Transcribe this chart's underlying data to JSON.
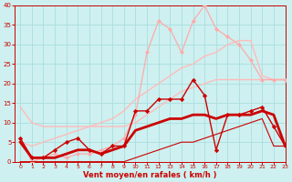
{
  "bg_color": "#cef0f0",
  "grid_color": "#aadddd",
  "xlabel": "Vent moyen/en rafales ( km/h )",
  "xlabel_color": "#cc0000",
  "tick_color": "#cc0000",
  "xlim": [
    -0.5,
    23
  ],
  "ylim": [
    0,
    40
  ],
  "xticks": [
    0,
    1,
    2,
    3,
    4,
    5,
    6,
    7,
    8,
    9,
    10,
    11,
    12,
    13,
    14,
    15,
    16,
    17,
    18,
    19,
    20,
    21,
    22,
    23
  ],
  "yticks": [
    0,
    5,
    10,
    15,
    20,
    25,
    30,
    35,
    40
  ],
  "lines": [
    {
      "x": [
        0,
        1,
        2,
        3,
        4,
        5,
        6,
        7,
        8,
        9,
        10,
        11,
        12,
        13,
        14,
        15,
        16,
        17,
        18,
        19,
        20,
        21,
        22,
        23
      ],
      "y": [
        6,
        0,
        1,
        2,
        1,
        2,
        2,
        3,
        4,
        6,
        12,
        28,
        36,
        34,
        28,
        36,
        40,
        34,
        32,
        30,
        26,
        21,
        21,
        21
      ],
      "color": "#ffaaaa",
      "lw": 0.9,
      "marker": "D",
      "ms": 2.0,
      "zorder": 3
    },
    {
      "x": [
        0,
        1,
        2,
        3,
        4,
        5,
        6,
        7,
        8,
        9,
        10,
        11,
        12,
        13,
        14,
        15,
        16,
        17,
        18,
        19,
        20,
        21,
        22,
        23
      ],
      "y": [
        5,
        4,
        5,
        6,
        7,
        8,
        9,
        10,
        11,
        13,
        16,
        18,
        20,
        22,
        24,
        25,
        27,
        28,
        30,
        31,
        31,
        22,
        21,
        21
      ],
      "color": "#ffbbbb",
      "lw": 1.0,
      "marker": null,
      "ms": 0,
      "zorder": 2
    },
    {
      "x": [
        0,
        1,
        2,
        3,
        4,
        5,
        6,
        7,
        8,
        9,
        10,
        11,
        12,
        13,
        14,
        15,
        16,
        17,
        18,
        19,
        20,
        21,
        22,
        23
      ],
      "y": [
        14,
        10,
        9,
        9,
        9,
        9,
        9,
        9,
        9,
        9,
        10,
        12,
        14,
        16,
        18,
        19,
        20,
        21,
        21,
        21,
        21,
        21,
        21,
        21
      ],
      "color": "#ffbbbb",
      "lw": 1.0,
      "marker": null,
      "ms": 0,
      "zorder": 2
    },
    {
      "x": [
        0,
        1,
        2,
        3,
        4,
        5,
        6,
        7,
        8,
        9,
        10,
        11,
        12,
        13,
        14,
        15,
        16,
        17,
        18,
        19,
        20,
        21,
        22,
        23
      ],
      "y": [
        6,
        1,
        1,
        3,
        5,
        6,
        3,
        2,
        4,
        4,
        13,
        13,
        16,
        16,
        16,
        21,
        17,
        3,
        12,
        12,
        13,
        14,
        9,
        4
      ],
      "color": "#cc0000",
      "lw": 1.0,
      "marker": "D",
      "ms": 2.2,
      "zorder": 5
    },
    {
      "x": [
        0,
        1,
        2,
        3,
        4,
        5,
        6,
        7,
        8,
        9,
        10,
        11,
        12,
        13,
        14,
        15,
        16,
        17,
        18,
        19,
        20,
        21,
        22,
        23
      ],
      "y": [
        5,
        1,
        1,
        1,
        2,
        3,
        3,
        2,
        3,
        4,
        8,
        9,
        10,
        11,
        11,
        12,
        12,
        11,
        12,
        12,
        12,
        13,
        12,
        4
      ],
      "color": "#cc0000",
      "lw": 2.0,
      "marker": null,
      "ms": 0,
      "zorder": 4
    },
    {
      "x": [
        0,
        1,
        2,
        3,
        4,
        5,
        6,
        7,
        8,
        9,
        10,
        11,
        12,
        13,
        14,
        15,
        16,
        17,
        18,
        19,
        20,
        21,
        22,
        23
      ],
      "y": [
        0,
        0,
        0,
        0,
        0,
        0,
        0,
        0,
        0,
        0,
        1,
        2,
        3,
        4,
        5,
        5,
        6,
        7,
        8,
        9,
        10,
        11,
        4,
        4
      ],
      "color": "#cc0000",
      "lw": 0.8,
      "marker": null,
      "ms": 0,
      "zorder": 4
    }
  ]
}
